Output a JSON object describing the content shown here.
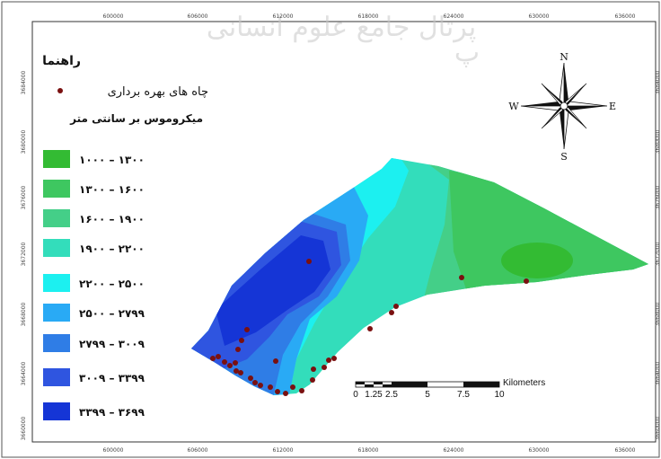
{
  "watermark": {
    "main": "پرتال جامع علوم انسانی",
    "small": "پ"
  },
  "axes": {
    "x_ticks": [
      "600000",
      "606000",
      "612000",
      "618000",
      "624000",
      "630000",
      "636000"
    ],
    "y_ticks": [
      "3684000",
      "3680000",
      "3676000",
      "3672000",
      "3668000",
      "3664000",
      "3660000"
    ]
  },
  "legend": {
    "title": "راهنما",
    "wells_label": "چاه های بهره برداری",
    "wells_color": "#7a1010",
    "units_title": "میکروموس بر سانتی متر",
    "classes": [
      {
        "label": "۱۰۰۰ – ۱۳۰۰",
        "color": "#33bb33"
      },
      {
        "label": "۱۳۰۰ – ۱۶۰۰",
        "color": "#3ec760"
      },
      {
        "label": "۱۶۰۰ – ۱۹۰۰",
        "color": "#44cf88"
      },
      {
        "label": "۱۹۰۰ – ۲۲۰۰",
        "color": "#33ddbb"
      },
      {
        "label": "۲۲۰۰ – ۲۵۰۰",
        "color": "#1cf0f0"
      },
      {
        "label": "۲۵۰۰ – ۲۷۹۹",
        "color": "#29aaf5"
      },
      {
        "label": "۲۷۹۹ – ۳۰۰۹",
        "color": "#2f7de6"
      },
      {
        "label": "۳۰۰۹ – ۳۳۹۹",
        "color": "#2f55e0"
      },
      {
        "label": "۳۳۹۹ – ۳۶۹۹",
        "color": "#1535d6"
      }
    ]
  },
  "compass": {
    "n": "N",
    "s": "S",
    "e": "E",
    "w": "W"
  },
  "scalebar": {
    "labels": [
      "0",
      "1.25",
      "2.5",
      "5",
      "7.5",
      "10"
    ],
    "unit": "Kilometers"
  }
}
